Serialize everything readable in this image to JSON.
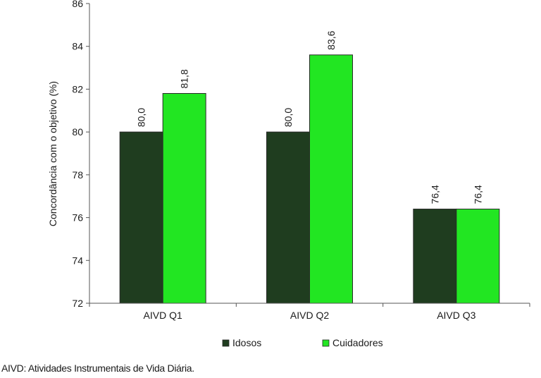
{
  "chart_data": {
    "type": "bar",
    "categories": [
      "AIVD Q1",
      "AIVD Q2",
      "AIVD Q3"
    ],
    "series": [
      {
        "name": "Idosos",
        "values": [
          80.0,
          80.0,
          76.4
        ],
        "labels": [
          "80,0",
          "80,0",
          "76,4"
        ],
        "color": "#1f3d1f"
      },
      {
        "name": "Cuidadores",
        "values": [
          81.8,
          83.6,
          76.4
        ],
        "labels": [
          "81,8",
          "83,6",
          "76,4"
        ],
        "color": "#22e622"
      }
    ],
    "ylabel": "Concordância com o objetivo (%)",
    "xlabel": "",
    "ylim": [
      72,
      86
    ],
    "yticks": [
      72,
      74,
      76,
      78,
      80,
      82,
      84,
      86
    ],
    "grid": false,
    "legend_position": "bottom"
  },
  "footnote": "AIVD: Atividades Instrumentais de Vida Diária."
}
